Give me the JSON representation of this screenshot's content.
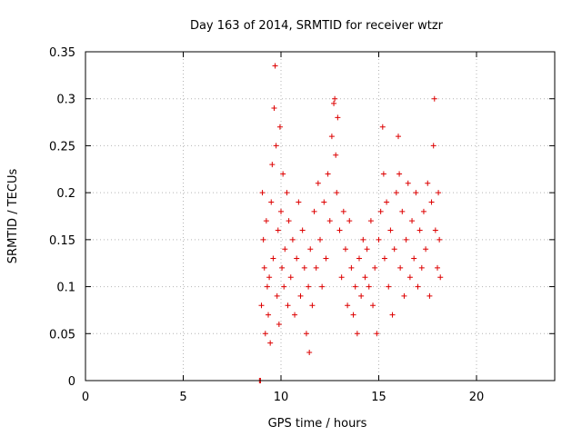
{
  "chart_data": {
    "type": "scatter",
    "title": "Day 163 of 2014, SRMTID for receiver wtzr",
    "xlabel": "GPS time / hours",
    "ylabel": "SRMTID / TECUs",
    "xlim": [
      0,
      24
    ],
    "ylim": [
      0,
      0.35
    ],
    "x_ticks": [
      0,
      5,
      10,
      15,
      20
    ],
    "x_tick_labels": [
      "0",
      "5",
      "10",
      "15",
      "20"
    ],
    "y_ticks": [
      0,
      0.05,
      0.1,
      0.15,
      0.2,
      0.25,
      0.3,
      0.35
    ],
    "y_tick_labels": [
      "0",
      "0.05",
      "0.1",
      "0.15",
      "0.2",
      "0.25",
      "0.3",
      "0.35"
    ],
    "grid": true,
    "marker": "+",
    "color": "#dd0000",
    "series": [
      {
        "name": "SRMTID",
        "points": [
          [
            8.9,
            0.0
          ],
          [
            8.95,
            0.0
          ],
          [
            9.0,
            0.08
          ],
          [
            9.05,
            0.2
          ],
          [
            9.1,
            0.15
          ],
          [
            9.15,
            0.12
          ],
          [
            9.2,
            0.05
          ],
          [
            9.25,
            0.17
          ],
          [
            9.3,
            0.1
          ],
          [
            9.35,
            0.07
          ],
          [
            9.4,
            0.11
          ],
          [
            9.45,
            0.04
          ],
          [
            9.5,
            0.19
          ],
          [
            9.55,
            0.23
          ],
          [
            9.6,
            0.13
          ],
          [
            9.65,
            0.29
          ],
          [
            9.7,
            0.335
          ],
          [
            9.75,
            0.25
          ],
          [
            9.8,
            0.09
          ],
          [
            9.85,
            0.16
          ],
          [
            9.9,
            0.06
          ],
          [
            9.95,
            0.27
          ],
          [
            10.0,
            0.18
          ],
          [
            10.05,
            0.12
          ],
          [
            10.1,
            0.22
          ],
          [
            10.15,
            0.1
          ],
          [
            10.2,
            0.14
          ],
          [
            10.3,
            0.2
          ],
          [
            10.35,
            0.08
          ],
          [
            10.4,
            0.17
          ],
          [
            10.5,
            0.11
          ],
          [
            10.6,
            0.15
          ],
          [
            10.7,
            0.07
          ],
          [
            10.8,
            0.13
          ],
          [
            10.9,
            0.19
          ],
          [
            11.0,
            0.09
          ],
          [
            11.1,
            0.16
          ],
          [
            11.2,
            0.12
          ],
          [
            11.3,
            0.05
          ],
          [
            11.4,
            0.1
          ],
          [
            11.45,
            0.03
          ],
          [
            11.5,
            0.14
          ],
          [
            11.6,
            0.08
          ],
          [
            11.7,
            0.18
          ],
          [
            11.8,
            0.12
          ],
          [
            11.9,
            0.21
          ],
          [
            12.0,
            0.15
          ],
          [
            12.1,
            0.1
          ],
          [
            12.2,
            0.19
          ],
          [
            12.3,
            0.13
          ],
          [
            12.4,
            0.22
          ],
          [
            12.5,
            0.17
          ],
          [
            12.6,
            0.26
          ],
          [
            12.7,
            0.295
          ],
          [
            12.75,
            0.3
          ],
          [
            12.8,
            0.24
          ],
          [
            12.85,
            0.2
          ],
          [
            12.9,
            0.28
          ],
          [
            13.0,
            0.16
          ],
          [
            13.1,
            0.11
          ],
          [
            13.2,
            0.18
          ],
          [
            13.3,
            0.14
          ],
          [
            13.4,
            0.08
          ],
          [
            13.5,
            0.17
          ],
          [
            13.6,
            0.12
          ],
          [
            13.7,
            0.07
          ],
          [
            13.8,
            0.1
          ],
          [
            13.9,
            0.05
          ],
          [
            14.0,
            0.13
          ],
          [
            14.1,
            0.09
          ],
          [
            14.2,
            0.15
          ],
          [
            14.3,
            0.11
          ],
          [
            14.4,
            0.14
          ],
          [
            14.5,
            0.1
          ],
          [
            14.6,
            0.17
          ],
          [
            14.7,
            0.08
          ],
          [
            14.8,
            0.12
          ],
          [
            14.9,
            0.05
          ],
          [
            15.0,
            0.15
          ],
          [
            15.1,
            0.18
          ],
          [
            15.2,
            0.27
          ],
          [
            15.25,
            0.22
          ],
          [
            15.3,
            0.13
          ],
          [
            15.4,
            0.19
          ],
          [
            15.5,
            0.1
          ],
          [
            15.6,
            0.16
          ],
          [
            15.7,
            0.07
          ],
          [
            15.8,
            0.14
          ],
          [
            15.9,
            0.2
          ],
          [
            16.0,
            0.26
          ],
          [
            16.05,
            0.22
          ],
          [
            16.1,
            0.12
          ],
          [
            16.2,
            0.18
          ],
          [
            16.3,
            0.09
          ],
          [
            16.4,
            0.15
          ],
          [
            16.5,
            0.21
          ],
          [
            16.6,
            0.11
          ],
          [
            16.7,
            0.17
          ],
          [
            16.8,
            0.13
          ],
          [
            16.9,
            0.2
          ],
          [
            17.0,
            0.1
          ],
          [
            17.1,
            0.16
          ],
          [
            17.2,
            0.12
          ],
          [
            17.3,
            0.18
          ],
          [
            17.4,
            0.14
          ],
          [
            17.5,
            0.21
          ],
          [
            17.6,
            0.09
          ],
          [
            17.7,
            0.19
          ],
          [
            17.8,
            0.25
          ],
          [
            17.85,
            0.3
          ],
          [
            17.9,
            0.16
          ],
          [
            18.0,
            0.12
          ],
          [
            18.05,
            0.2
          ],
          [
            18.1,
            0.15
          ],
          [
            18.15,
            0.11
          ]
        ]
      }
    ]
  }
}
